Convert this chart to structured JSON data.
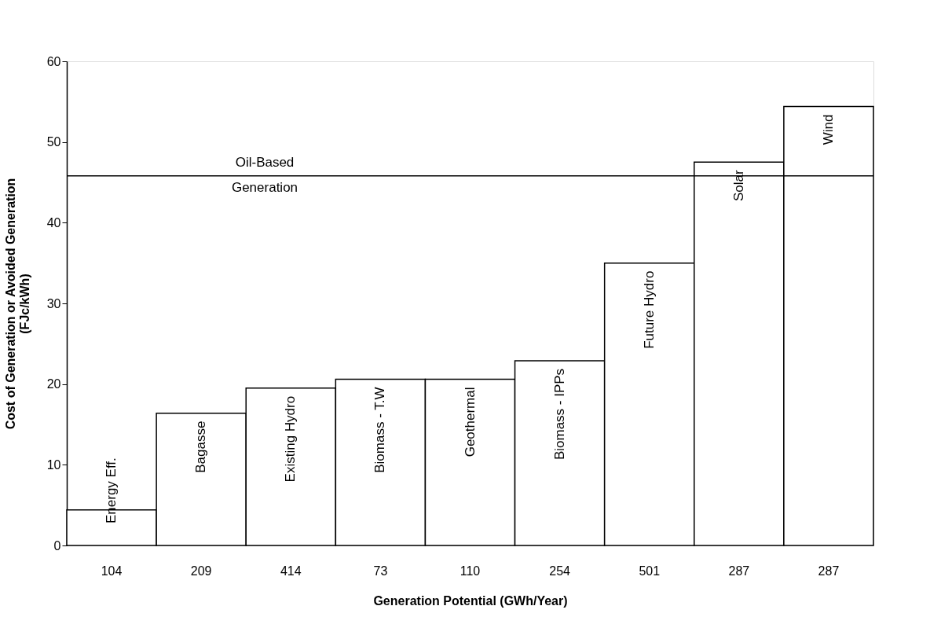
{
  "chart_data": {
    "type": "bar",
    "ylabel": "Cost of Generation or Avoided Generation\n(FJc/kWh)",
    "xlabel": "Generation Potential (GWh/Year)",
    "categories": [
      "104",
      "209",
      "414",
      "73",
      "110",
      "254",
      "501",
      "287",
      "287"
    ],
    "values": [
      4.4,
      16.4,
      19.5,
      20.6,
      20.6,
      22.9,
      35.0,
      47.5,
      54.4
    ],
    "color": "#ffffff",
    "ylim": [
      0,
      60
    ],
    "yticks": [
      0,
      10,
      20,
      30,
      40,
      50,
      60
    ],
    "grid": false,
    "ref_lines": [
      {
        "axis": "y",
        "value": 45.8,
        "label": "Oil-Based\nGeneration",
        "color": "#000000"
      }
    ],
    "annotations": [
      "Energy Eff.",
      "Bagasse",
      "Existing Hydro",
      "Biomass - T.W",
      "Geothermal",
      "Biomass - IPPs",
      "Future Hydro",
      "Solar",
      "Wind"
    ]
  }
}
